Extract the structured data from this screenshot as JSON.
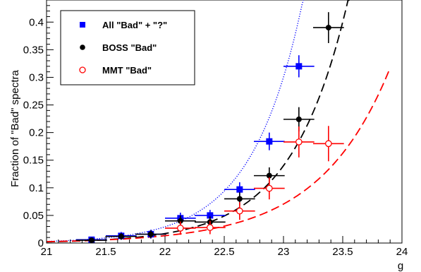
{
  "chart_data": {
    "type": "scatter",
    "xlabel": "g",
    "ylabel": "Fraction of \"Bad\" spectra",
    "xlim": [
      21,
      24
    ],
    "ylim": [
      0,
      0.44
    ],
    "x_ticks": [
      "21",
      "21.5",
      "22",
      "22.5",
      "23",
      "23.5",
      "24"
    ],
    "y_ticks": [
      "0",
      "0.05",
      "0.1",
      "0.15",
      "0.2",
      "0.25",
      "0.3",
      "0.35",
      "0.4"
    ],
    "grid": false,
    "legend_position": "top-left",
    "series": [
      {
        "name": "All \"Bad\" + \"?\"",
        "marker": "square",
        "color": "#0000ff",
        "fit_style": "dotted",
        "points": [
          {
            "x": 21.38,
            "y": 0.006,
            "xerr": 0.13,
            "yerr": 0.004
          },
          {
            "x": 21.63,
            "y": 0.013,
            "xerr": 0.13,
            "yerr": 0.007
          },
          {
            "x": 21.88,
            "y": 0.016,
            "xerr": 0.13,
            "yerr": 0.008
          },
          {
            "x": 22.13,
            "y": 0.045,
            "xerr": 0.13,
            "yerr": 0.01
          },
          {
            "x": 22.38,
            "y": 0.05,
            "xerr": 0.13,
            "yerr": 0.01
          },
          {
            "x": 22.63,
            "y": 0.097,
            "xerr": 0.13,
            "yerr": 0.013
          },
          {
            "x": 22.88,
            "y": 0.184,
            "xerr": 0.13,
            "yerr": 0.016
          },
          {
            "x": 23.13,
            "y": 0.32,
            "xerr": 0.13,
            "yerr": 0.02
          }
        ],
        "fit": {
          "a": 0.0029,
          "b": 2.32,
          "x0": 21,
          "x1": 23.45
        }
      },
      {
        "name": "BOSS \"Bad\"",
        "marker": "circle",
        "color": "#000000",
        "fit_style": "dashed",
        "points": [
          {
            "x": 21.38,
            "y": 0.005,
            "xerr": 0.13,
            "yerr": 0.004
          },
          {
            "x": 21.63,
            "y": 0.012,
            "xerr": 0.13,
            "yerr": 0.006
          },
          {
            "x": 21.88,
            "y": 0.016,
            "xerr": 0.13,
            "yerr": 0.007
          },
          {
            "x": 22.13,
            "y": 0.04,
            "xerr": 0.13,
            "yerr": 0.01
          },
          {
            "x": 22.38,
            "y": 0.038,
            "xerr": 0.13,
            "yerr": 0.01
          },
          {
            "x": 22.63,
            "y": 0.08,
            "xerr": 0.13,
            "yerr": 0.012
          },
          {
            "x": 22.88,
            "y": 0.122,
            "xerr": 0.13,
            "yerr": 0.015
          },
          {
            "x": 23.13,
            "y": 0.224,
            "xerr": 0.13,
            "yerr": 0.022
          },
          {
            "x": 23.38,
            "y": 0.39,
            "xerr": 0.13,
            "yerr": 0.028
          }
        ],
        "fit": {
          "a": 0.0021,
          "b": 2.1,
          "x0": 21,
          "x1": 23.65
        }
      },
      {
        "name": "MMT \"Bad\"",
        "marker": "open-circle",
        "color": "#ff0000",
        "fit_style": "dashed",
        "points": [
          {
            "x": 22.13,
            "y": 0.027,
            "xerr": 0.13,
            "yerr": 0.012
          },
          {
            "x": 22.38,
            "y": 0.028,
            "xerr": 0.13,
            "yerr": 0.012
          },
          {
            "x": 22.63,
            "y": 0.058,
            "xerr": 0.13,
            "yerr": 0.016
          },
          {
            "x": 22.88,
            "y": 0.099,
            "xerr": 0.13,
            "yerr": 0.02
          },
          {
            "x": 23.13,
            "y": 0.183,
            "xerr": 0.13,
            "yerr": 0.028
          },
          {
            "x": 23.38,
            "y": 0.18,
            "xerr": 0.13,
            "yerr": 0.032
          }
        ],
        "fit": {
          "a": 0.0025,
          "b": 1.67,
          "x0": 21,
          "x1": 23.9
        }
      }
    ]
  }
}
